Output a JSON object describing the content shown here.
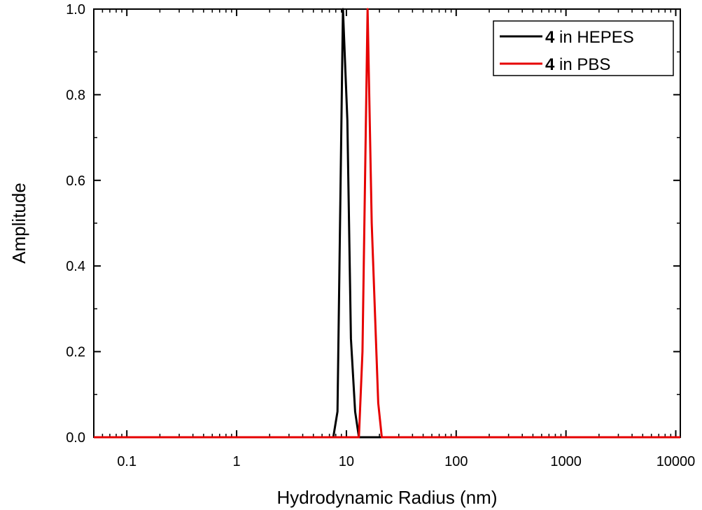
{
  "chart_data": {
    "type": "line",
    "title": "",
    "xlabel": "Hydrodynamic Radius (nm)",
    "ylabel": "Amplitude",
    "xscale": "log",
    "xlim": [
      0.05,
      11000
    ],
    "ylim": [
      0,
      1.0
    ],
    "xticks": [
      {
        "value": 0.1,
        "label": "0.1"
      },
      {
        "value": 1,
        "label": "1"
      },
      {
        "value": 10,
        "label": "10"
      },
      {
        "value": 100,
        "label": "100"
      },
      {
        "value": 1000,
        "label": "1000"
      },
      {
        "value": 10000,
        "label": "10000"
      }
    ],
    "yticks": [
      {
        "value": 0.0,
        "label": "0.0"
      },
      {
        "value": 0.2,
        "label": "0.2"
      },
      {
        "value": 0.4,
        "label": "0.4"
      },
      {
        "value": 0.6,
        "label": "0.6"
      },
      {
        "value": 0.8,
        "label": "0.8"
      },
      {
        "value": 1.0,
        "label": "1.0"
      }
    ],
    "grid": false,
    "legend_position": "top-right",
    "series": [
      {
        "name_bold": "4",
        "name_rest": " in HEPES",
        "color": "#000000",
        "x": [
          0.05,
          7.6,
          8.3,
          9.3,
          10.2,
          11.0,
          12.0,
          13.0,
          11000
        ],
        "y": [
          0,
          0,
          0.06,
          1.0,
          0.74,
          0.23,
          0.06,
          0,
          0
        ]
      },
      {
        "name_bold": "4",
        "name_rest": " in PBS",
        "color": "#e60000",
        "x": [
          0.05,
          13.0,
          14.0,
          15.6,
          17.0,
          19.5,
          21.0,
          11000
        ],
        "y": [
          0,
          0,
          0.2,
          1.0,
          0.5,
          0.08,
          0,
          0
        ]
      }
    ]
  }
}
